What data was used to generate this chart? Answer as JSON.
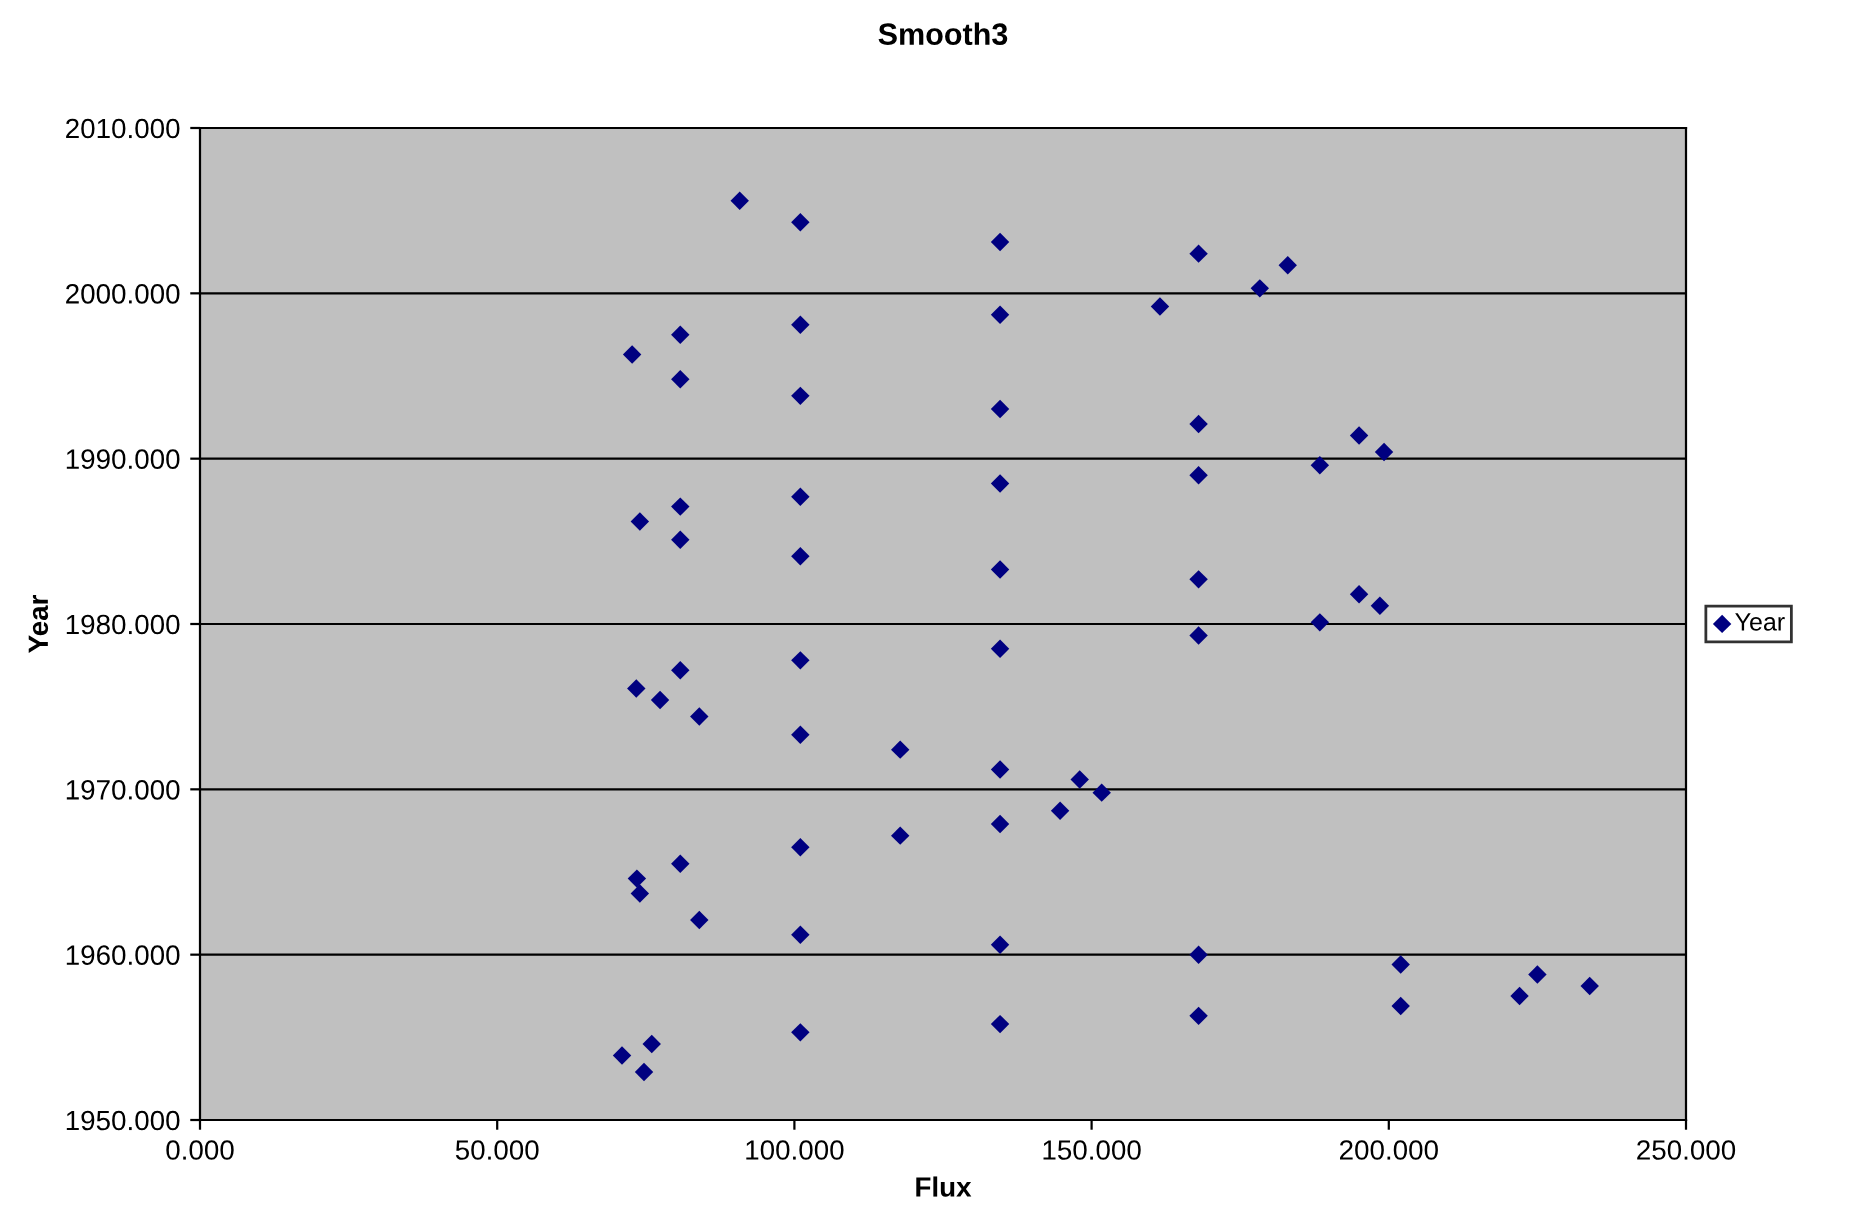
{
  "chart_data": {
    "type": "scatter",
    "title": "Smooth3",
    "xlabel": "Flux",
    "ylabel": "Year",
    "xlim": [
      0,
      250
    ],
    "ylim": [
      1950,
      2010
    ],
    "xticks": [
      {
        "value": 0,
        "label": "0.000"
      },
      {
        "value": 50,
        "label": "50.000"
      },
      {
        "value": 100,
        "label": "100.000"
      },
      {
        "value": 150,
        "label": "150.000"
      },
      {
        "value": 200,
        "label": "200.000"
      },
      {
        "value": 250,
        "label": "250.000"
      }
    ],
    "yticks": [
      {
        "value": 1950,
        "label": "1950.000"
      },
      {
        "value": 1960,
        "label": "1960.000"
      },
      {
        "value": 1970,
        "label": "1970.000"
      },
      {
        "value": 1980,
        "label": "1980.000"
      },
      {
        "value": 1990,
        "label": "1990.000"
      },
      {
        "value": 2000,
        "label": "2000.000"
      },
      {
        "value": 2010,
        "label": "2010.000"
      }
    ],
    "grid": "y",
    "legend": "right",
    "marker": "diamond",
    "series": [
      {
        "name": "Year",
        "color": "#000080",
        "x": [
          74.7,
          71,
          76,
          101,
          134.6,
          168,
          202,
          222,
          233.8,
          225,
          202,
          168,
          134.6,
          101,
          84,
          74,
          73.5,
          80.8,
          101,
          117.8,
          134.6,
          144.7,
          151.7,
          148,
          134.6,
          117.8,
          101,
          84,
          77.4,
          73.4,
          80.8,
          101,
          134.6,
          168,
          188.4,
          198.5,
          195,
          168,
          134.6,
          101,
          80.8,
          74,
          80.8,
          101,
          134.6,
          168,
          188.4,
          199.2,
          195,
          168,
          134.6,
          101,
          80.8,
          72.7,
          80.8,
          101,
          134.6,
          161.5,
          178.3,
          183,
          168,
          134.6,
          101,
          90.8
        ],
        "values": [
          1952.9,
          1953.9,
          1954.6,
          1955.3,
          1955.8,
          1956.3,
          1956.9,
          1957.5,
          1958.1,
          1958.8,
          1959.4,
          1960,
          1960.6,
          1961.2,
          1962.1,
          1963.7,
          1964.6,
          1965.5,
          1966.5,
          1967.2,
          1967.9,
          1968.7,
          1969.8,
          1970.6,
          1971.2,
          1972.4,
          1973.3,
          1974.4,
          1975.4,
          1976.1,
          1977.2,
          1977.8,
          1978.5,
          1979.3,
          1980.1,
          1981.1,
          1981.8,
          1982.7,
          1983.3,
          1984.1,
          1985.1,
          1986.2,
          1987.1,
          1987.7,
          1988.5,
          1989,
          1989.6,
          1990.4,
          1991.4,
          1992.1,
          1993,
          1993.8,
          1994.8,
          1996.3,
          1997.5,
          1998.1,
          1998.7,
          1999.2,
          2000.3,
          2001.7,
          2002.4,
          2003.1,
          2004.3,
          2005.6
        ]
      }
    ]
  }
}
